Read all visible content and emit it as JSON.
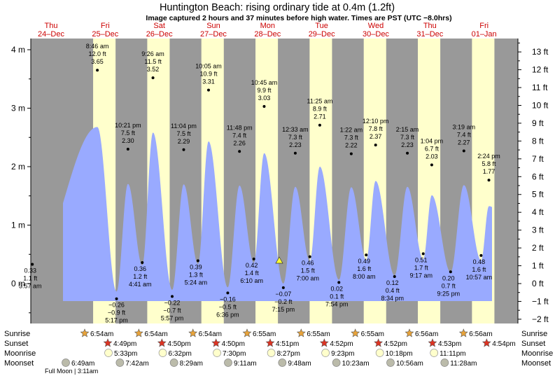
{
  "title": "Huntington Beach: rising  ordinary tide at 0.4m (1.2ft)",
  "subtitle": "Image captured 2 hours and 37 minutes before high water. Times are PST (UTC −8.0hrs)",
  "colors": {
    "night": "#999999",
    "day": "#ffffcc",
    "tide": "#99aaff",
    "day_label": "#cc0000",
    "text": "#000000",
    "sun_fill": "#e8a33a",
    "sunset_fill": "#dd3322",
    "moon_fill": "#ffffcc",
    "moonset_fill": "#bbbbaa",
    "marker": "#ffff33"
  },
  "chart_data": {
    "type": "area",
    "title": "Huntington Beach: rising  ordinary tide at 0.4m (1.2ft)",
    "ylabel_left_unit": "m",
    "ylabel_right_unit": "ft",
    "ylim": [
      -0.52,
      4.2
    ],
    "left_ticks": [
      {
        "v": 4,
        "label": "4 m"
      },
      {
        "v": 3,
        "label": "3 m"
      },
      {
        "v": 2,
        "label": "2 m"
      },
      {
        "v": 1,
        "label": "1 m"
      },
      {
        "v": 0,
        "label": "0 m"
      }
    ],
    "right_ticks": [
      {
        "v": 13,
        "label": "13 ft"
      },
      {
        "v": 12,
        "label": "12 ft"
      },
      {
        "v": 11,
        "label": "11 ft"
      },
      {
        "v": 10,
        "label": "10 ft"
      },
      {
        "v": 9,
        "label": "9 ft"
      },
      {
        "v": 8,
        "label": "8 ft"
      },
      {
        "v": 7,
        "label": "7 ft"
      },
      {
        "v": 6,
        "label": "6 ft"
      },
      {
        "v": 5,
        "label": "5 ft"
      },
      {
        "v": 4,
        "label": "4 ft"
      },
      {
        "v": 3,
        "label": "3 ft"
      },
      {
        "v": 2,
        "label": "2 ft"
      },
      {
        "v": 1,
        "label": "1 ft"
      },
      {
        "v": 0,
        "label": "0 ft"
      },
      {
        "v": -1,
        "label": "−1 ft"
      },
      {
        "v": -2,
        "label": "−2 ft"
      }
    ],
    "days": [
      {
        "day": "Thu",
        "date": "24–Dec"
      },
      {
        "day": "Fri",
        "date": "25–Dec"
      },
      {
        "day": "Sat",
        "date": "26–Dec"
      },
      {
        "day": "Sun",
        "date": "27–Dec"
      },
      {
        "day": "Mon",
        "date": "28–Dec"
      },
      {
        "day": "Tue",
        "date": "29–Dec"
      },
      {
        "day": "Wed",
        "date": "30–Dec"
      },
      {
        "day": "Thu",
        "date": "31–Dec"
      },
      {
        "day": "Fri",
        "date": "01–Jan"
      }
    ],
    "current_level_m": 0.4,
    "tides": [
      {
        "day": 0,
        "time": "3:57 am",
        "h": 0.33,
        "ft": "1.1 ft",
        "m": "0.33",
        "type": "low"
      },
      {
        "day": 1,
        "time": "8:46 am",
        "h": 3.65,
        "ft": "12.0 ft",
        "m": "3.65",
        "type": "high"
      },
      {
        "day": 1,
        "time": "5:17 pm",
        "h": -0.26,
        "ft": "−0.9 ft",
        "m": "−0.26",
        "type": "low"
      },
      {
        "day": 1,
        "time": "10:21 pm",
        "h": 2.3,
        "ft": "7.5 ft",
        "m": "2.30",
        "type": "high"
      },
      {
        "day": 2,
        "time": "4:41 am",
        "h": 0.36,
        "ft": "1.2 ft",
        "m": "0.36",
        "type": "low"
      },
      {
        "day": 2,
        "time": "9:26 am",
        "h": 3.52,
        "ft": "11.5 ft",
        "m": "3.52",
        "type": "high"
      },
      {
        "day": 2,
        "time": "5:57 pm",
        "h": -0.22,
        "ft": "−0.7 ft",
        "m": "−0.22",
        "type": "low"
      },
      {
        "day": 2,
        "time": "11:04 pm",
        "h": 2.29,
        "ft": "7.5 ft",
        "m": "2.29",
        "type": "high"
      },
      {
        "day": 3,
        "time": "5:24 am",
        "h": 0.39,
        "ft": "1.3 ft",
        "m": "0.39",
        "type": "low"
      },
      {
        "day": 3,
        "time": "10:05 am",
        "h": 3.31,
        "ft": "10.9 ft",
        "m": "3.31",
        "type": "high"
      },
      {
        "day": 3,
        "time": "6:36 pm",
        "h": -0.16,
        "ft": "−0.5 ft",
        "m": "−0.16",
        "type": "low"
      },
      {
        "day": 3,
        "time": "11:48 pm",
        "h": 2.26,
        "ft": "7.4 ft",
        "m": "2.26",
        "type": "high"
      },
      {
        "day": 4,
        "time": "6:10 am",
        "h": 0.42,
        "ft": "1.4 ft",
        "m": "0.42",
        "type": "low"
      },
      {
        "day": 4,
        "time": "10:45 am",
        "h": 3.03,
        "ft": "9.9 ft",
        "m": "3.03",
        "type": "high"
      },
      {
        "day": 4,
        "time": "7:15 pm",
        "h": -0.07,
        "ft": "−0.2 ft",
        "m": "−0.07",
        "type": "low"
      },
      {
        "day": 5,
        "time": "7:00 am",
        "h": 0.46,
        "ft": "1.5 ft",
        "m": "0.46",
        "type": "low"
      },
      {
        "day": 5,
        "time": "11:25 am",
        "h": 2.71,
        "ft": "8.9 ft",
        "m": "2.71",
        "type": "high"
      },
      {
        "day": 5,
        "time": "12:33 am",
        "h": 2.23,
        "ft": "7.3 ft",
        "m": "2.23",
        "type": "high"
      },
      {
        "day": 5,
        "time": "7:54 pm",
        "h": 0.02,
        "ft": "0.1 ft",
        "m": "0.02",
        "type": "low"
      },
      {
        "day": 6,
        "time": "1:22 am",
        "h": 2.22,
        "ft": "7.3 ft",
        "m": "2.22",
        "type": "high"
      },
      {
        "day": 6,
        "time": "8:00 am",
        "h": 0.49,
        "ft": "1.6 ft",
        "m": "0.49",
        "type": "low"
      },
      {
        "day": 6,
        "time": "12:10 pm",
        "h": 2.37,
        "ft": "7.8 ft",
        "m": "2.37",
        "type": "high"
      },
      {
        "day": 6,
        "time": "8:34 pm",
        "h": 0.12,
        "ft": "0.4 ft",
        "m": "0.12",
        "type": "low"
      },
      {
        "day": 7,
        "time": "2:15 am",
        "h": 2.23,
        "ft": "7.3 ft",
        "m": "2.23",
        "type": "high"
      },
      {
        "day": 7,
        "time": "9:17 am",
        "h": 0.51,
        "ft": "1.7 ft",
        "m": "0.51",
        "type": "low"
      },
      {
        "day": 7,
        "time": "1:04 pm",
        "h": 2.03,
        "ft": "6.7 ft",
        "m": "2.03",
        "type": "high"
      },
      {
        "day": 7,
        "time": "9:25 pm",
        "h": 0.2,
        "ft": "0.7 ft",
        "m": "0.20",
        "type": "low"
      },
      {
        "day": 8,
        "time": "3:19 am",
        "h": 2.27,
        "ft": "7.4 ft",
        "m": "2.27",
        "type": "high"
      },
      {
        "day": 8,
        "time": "10:57 am",
        "h": 0.48,
        "ft": "1.6 ft",
        "m": "0.48",
        "type": "low"
      },
      {
        "day": 8,
        "time": "2:24 pm",
        "h": 1.77,
        "ft": "5.8 ft",
        "m": "1.77",
        "type": "high"
      }
    ],
    "astro_labels": {
      "sunrise": "Sunrise",
      "sunset": "Sunset",
      "moonrise": "Moonrise",
      "moonset": "Moonset"
    },
    "sunrise": [
      "6:54am",
      "6:54am",
      "6:54am",
      "6:55am",
      "6:55am",
      "6:55am",
      "6:56am",
      "6:56am"
    ],
    "sunset": [
      "4:49pm",
      "4:50pm",
      "4:50pm",
      "4:51pm",
      "4:52pm",
      "4:52pm",
      "4:53pm",
      "4:54pm"
    ],
    "moonrise": [
      "5:33pm",
      "6:32pm",
      "7:30pm",
      "8:27pm",
      "9:23pm",
      "10:18pm",
      "11:11pm"
    ],
    "moonset": [
      "6:49am",
      "7:42am",
      "8:29am",
      "9:11am",
      "9:48am",
      "10:23am",
      "10:56am",
      "11:28am"
    ],
    "moon_phase": "Full Moon | 3:11am"
  }
}
